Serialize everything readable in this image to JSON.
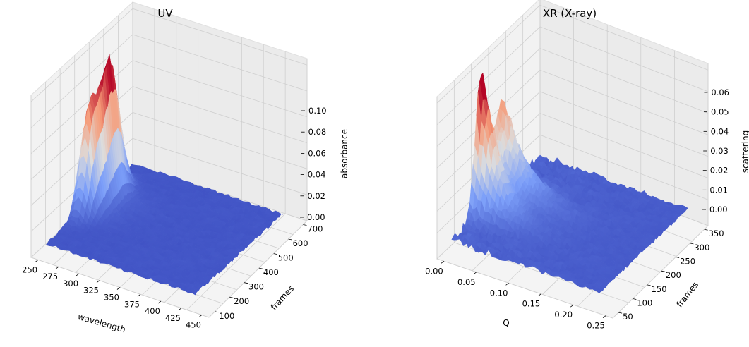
{
  "chart_data": [
    {
      "type": "surface3d",
      "title": "UV",
      "xlabel": "wavelength",
      "ylabel": "frames",
      "zlabel": "absorbance",
      "xlim": [
        250,
        450
      ],
      "ylim": [
        100,
        700
      ],
      "zlim": [
        0.0,
        0.11
      ],
      "xticks": [
        "250",
        "275",
        "300",
        "325",
        "350",
        "375",
        "400",
        "425",
        "450"
      ],
      "yticks": [
        "100",
        "200",
        "300",
        "400",
        "500",
        "600",
        "700"
      ],
      "zticks": [
        "0.00",
        "0.02",
        "0.04",
        "0.06",
        "0.08",
        "0.10"
      ],
      "colormap": "coolwarm",
      "peaks": [
        {
          "wavelength": 258,
          "frame": 355,
          "height": 0.08,
          "width_wl": 9,
          "width_fr": 45
        },
        {
          "wavelength": 262,
          "frame": 470,
          "height": 0.11,
          "width_wl": 9,
          "width_fr": 55
        }
      ]
    },
    {
      "type": "surface3d",
      "title": "XR (X-ray)",
      "xlabel": "Q",
      "ylabel": "frames",
      "zlabel": "scattering",
      "xlim": [
        0.0,
        0.28
      ],
      "ylim": [
        50,
        380
      ],
      "zlim": [
        -0.008,
        0.06
      ],
      "xticks": [
        "0.00",
        "0.05",
        "0.10",
        "0.15",
        "0.20",
        "0.25"
      ],
      "yticks": [
        "50",
        "100",
        "150",
        "200",
        "250",
        "300",
        "350"
      ],
      "zticks": [
        "0.00",
        "0.01",
        "0.02",
        "0.03",
        "0.04",
        "0.05",
        "0.06"
      ],
      "colormap": "coolwarm",
      "peaks": [
        {
          "q": 0.008,
          "frame": 160,
          "height": 0.055,
          "width_fr": 22,
          "decay_q": 0.03
        },
        {
          "q": 0.008,
          "frame": 235,
          "height": 0.04,
          "width_fr": 30,
          "decay_q": 0.04
        }
      ]
    }
  ]
}
